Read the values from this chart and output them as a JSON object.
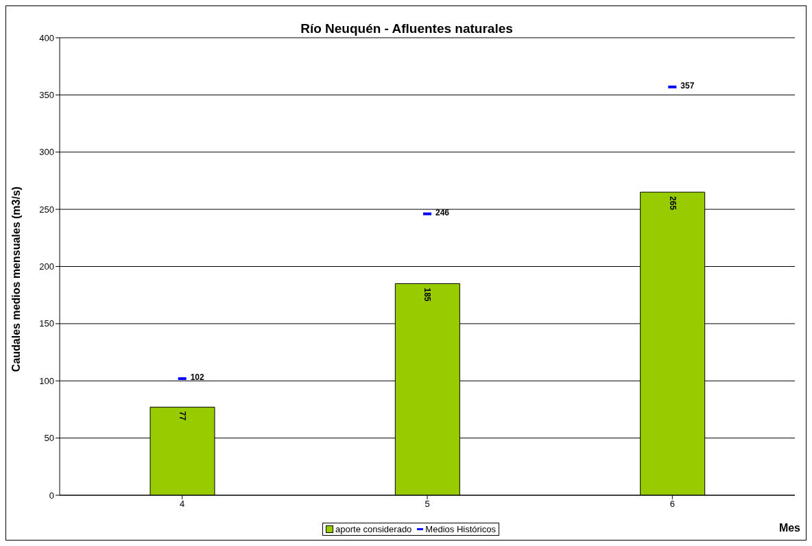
{
  "chart_data": {
    "type": "bar",
    "title": "Río Neuquén - Afluentes naturales",
    "xlabel": "Mes",
    "ylabel": "Caudales medios mensuales (m3/s)",
    "categories": [
      "4",
      "5",
      "6"
    ],
    "series": [
      {
        "name": "aporte considerado",
        "color": "#99cc00",
        "values": [
          77,
          185,
          265
        ]
      },
      {
        "name": "Medios Históricos",
        "type": "line",
        "color": "#0000ff",
        "values": [
          102,
          246,
          357
        ]
      }
    ],
    "ylim": [
      0,
      400
    ],
    "yticks": [
      0,
      50,
      100,
      150,
      200,
      250,
      300,
      350,
      400
    ],
    "grid": "y",
    "legend": "bottom",
    "data_labels": true
  }
}
